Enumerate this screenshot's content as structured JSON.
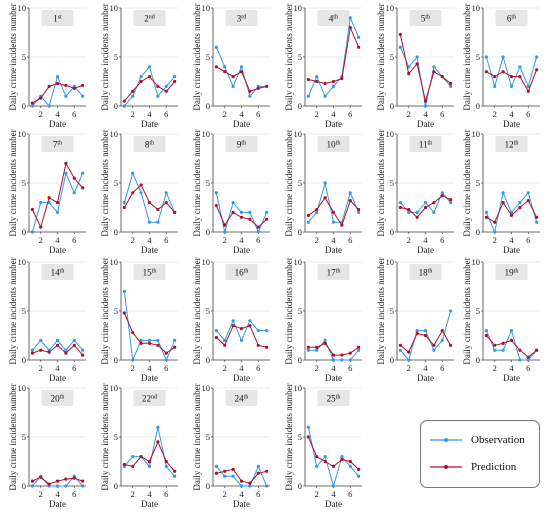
{
  "chart_data": {
    "type": "line",
    "x": [
      1,
      2,
      3,
      4,
      5,
      6,
      7
    ],
    "ylim": [
      0,
      10
    ],
    "yticks": [
      0,
      5,
      10
    ],
    "xticks": [
      2,
      4,
      6
    ],
    "xlabel": "Date",
    "ylabel": "Daily crime incidents number",
    "grid": true,
    "colors": {
      "observation": "#3399e6",
      "prediction": "#b0102a"
    },
    "legend": {
      "position": "bottom-right",
      "entries": [
        "Observation",
        "Prediction"
      ]
    },
    "panels": [
      {
        "rank": "1",
        "suffix": "st",
        "observation": [
          0,
          1,
          0,
          3,
          1,
          2,
          1
        ],
        "prediction": [
          0.3,
          0.8,
          2.0,
          2.3,
          2.1,
          1.8,
          2.1
        ]
      },
      {
        "rank": "2",
        "suffix": "nd",
        "observation": [
          0,
          1,
          3,
          4,
          1,
          2,
          3
        ],
        "prediction": [
          0.5,
          1.5,
          2.5,
          3.0,
          2.0,
          1.5,
          2.5
        ]
      },
      {
        "rank": "3",
        "suffix": "rd",
        "observation": [
          6,
          4,
          2,
          4,
          1,
          2,
          2
        ],
        "prediction": [
          4.0,
          3.5,
          3.0,
          3.5,
          1.5,
          1.8,
          2.0
        ]
      },
      {
        "rank": "4",
        "suffix": "th",
        "observation": [
          1,
          3,
          1,
          2,
          3,
          9,
          7
        ],
        "prediction": [
          2.7,
          2.5,
          2.3,
          2.5,
          2.8,
          8.0,
          6.0
        ]
      },
      {
        "rank": "5",
        "suffix": "th",
        "observation": [
          6,
          4,
          5,
          0,
          4,
          3,
          2
        ],
        "prediction": [
          7.3,
          3.3,
          4.3,
          0.5,
          3.5,
          3.0,
          2.3
        ]
      },
      {
        "rank": "6",
        "suffix": "th",
        "observation": [
          5,
          2,
          5,
          2,
          4,
          2,
          5
        ],
        "prediction": [
          3.5,
          3.0,
          3.5,
          3.0,
          3.0,
          1.5,
          3.7
        ]
      },
      {
        "rank": "7",
        "suffix": "th",
        "observation": [
          0,
          3,
          3,
          2,
          6,
          4,
          6
        ],
        "prediction": [
          2.3,
          0.5,
          3.5,
          3.0,
          7.0,
          5.5,
          4.5
        ]
      },
      {
        "rank": "8",
        "suffix": "th",
        "observation": [
          3,
          6,
          4,
          1,
          1,
          4,
          2
        ],
        "prediction": [
          2.5,
          4.0,
          4.8,
          3.0,
          2.3,
          3.0,
          2.0
        ]
      },
      {
        "rank": "9",
        "suffix": "th",
        "observation": [
          4,
          0,
          3,
          2,
          2,
          0,
          2
        ],
        "prediction": [
          2.7,
          0.7,
          2.0,
          1.5,
          1.3,
          0.5,
          1.3
        ]
      },
      {
        "rank": "10",
        "suffix": "th",
        "observation": [
          1,
          2,
          5,
          1,
          1,
          4,
          2
        ],
        "prediction": [
          1.7,
          2.3,
          3.5,
          2.0,
          0.7,
          3.2,
          2.3
        ]
      },
      {
        "rank": "11",
        "suffix": "th",
        "observation": [
          3,
          2,
          2,
          3,
          2,
          4,
          3
        ],
        "prediction": [
          2.5,
          2.3,
          1.5,
          2.5,
          3.0,
          3.7,
          3.3
        ]
      },
      {
        "rank": "12",
        "suffix": "th",
        "observation": [
          2,
          0,
          4,
          2,
          3,
          4,
          1
        ],
        "prediction": [
          1.5,
          1.0,
          3.0,
          1.7,
          2.5,
          3.2,
          1.5
        ]
      },
      {
        "rank": "14",
        "suffix": "th",
        "observation": [
          1,
          2,
          1,
          2,
          1,
          2,
          1
        ],
        "prediction": [
          0.7,
          1.0,
          0.8,
          1.5,
          0.7,
          1.5,
          0.5
        ]
      },
      {
        "rank": "15",
        "suffix": "th",
        "observation": [
          7,
          0,
          2,
          2,
          2,
          0,
          2
        ],
        "prediction": [
          4.8,
          2.8,
          1.7,
          1.7,
          1.5,
          0.7,
          1.3
        ]
      },
      {
        "rank": "16",
        "suffix": "th",
        "observation": [
          3,
          2,
          4,
          2,
          4,
          3,
          3
        ],
        "prediction": [
          2.3,
          1.5,
          3.5,
          3.2,
          3.5,
          1.5,
          1.3
        ]
      },
      {
        "rank": "17",
        "suffix": "th",
        "observation": [
          1,
          1,
          2,
          0,
          0,
          0,
          1
        ],
        "prediction": [
          1.3,
          1.3,
          1.7,
          0.5,
          0.5,
          0.7,
          1.3
        ]
      },
      {
        "rank": "18",
        "suffix": "th",
        "observation": [
          1,
          0,
          3,
          3,
          1,
          2,
          5
        ],
        "prediction": [
          1.5,
          0.8,
          2.7,
          2.5,
          1.5,
          3.0,
          1.5
        ]
      },
      {
        "rank": "19",
        "suffix": "th",
        "observation": [
          3,
          1,
          1,
          3,
          0,
          0,
          1
        ],
        "prediction": [
          2.5,
          1.5,
          1.7,
          2.0,
          1.0,
          0.3,
          1.0
        ]
      },
      {
        "rank": "20",
        "suffix": "th",
        "observation": [
          0,
          1,
          0,
          0,
          0,
          1,
          0
        ],
        "prediction": [
          0.5,
          0.9,
          0.2,
          0.5,
          0.7,
          0.8,
          0.5
        ]
      },
      {
        "rank": "22",
        "suffix": "nd",
        "observation": [
          2,
          3,
          3,
          2,
          6,
          2,
          1
        ],
        "prediction": [
          2.2,
          2.0,
          3.0,
          2.5,
          4.5,
          2.5,
          1.5
        ]
      },
      {
        "rank": "24",
        "suffix": "th",
        "observation": [
          2,
          1,
          1,
          0,
          0,
          2,
          0
        ],
        "prediction": [
          1.3,
          1.5,
          1.7,
          0.5,
          0.3,
          1.3,
          1.5
        ]
      },
      {
        "rank": "25",
        "suffix": "th",
        "observation": [
          6,
          2,
          3,
          0,
          3,
          2,
          1
        ],
        "prediction": [
          5.0,
          3.0,
          2.5,
          2.0,
          2.7,
          2.5,
          1.7
        ]
      }
    ]
  }
}
